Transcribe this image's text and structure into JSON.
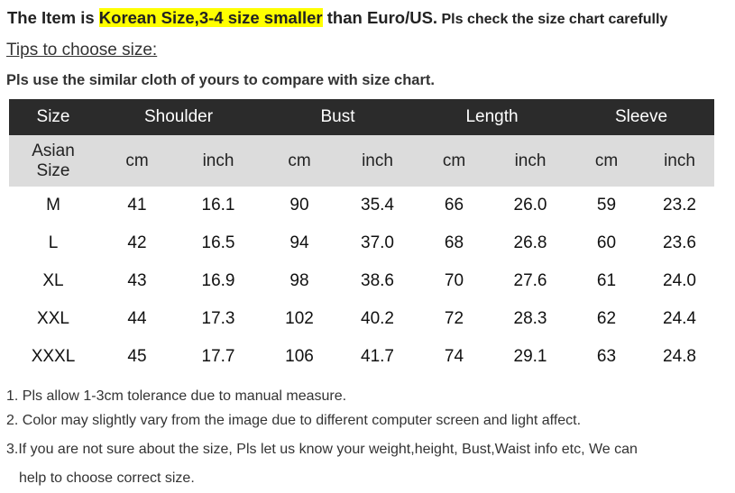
{
  "heading": {
    "prefix": "The Item is ",
    "highlight": "Korean Size,3-4 size smaller",
    "middle": " than Euro/US.",
    "suffix": " Pls check the size chart carefully",
    "highlight_color": "#ffff00"
  },
  "tips_label": "Tips to choose size:",
  "instruction": "Pls use the similar cloth of yours to compare with size chart.",
  "table": {
    "header": [
      "Size",
      "Shoulder",
      "Bust",
      "Length",
      "Sleeve"
    ],
    "subheader": [
      "Asian Size",
      "cm",
      "inch",
      "cm",
      "inch",
      "cm",
      "inch",
      "cm",
      "inch"
    ],
    "rows": [
      [
        "M",
        "41",
        "16.1",
        "90",
        "35.4",
        "66",
        "26.0",
        "59",
        "23.2"
      ],
      [
        "L",
        "42",
        "16.5",
        "94",
        "37.0",
        "68",
        "26.8",
        "60",
        "23.6"
      ],
      [
        "XL",
        "43",
        "16.9",
        "98",
        "38.6",
        "70",
        "27.6",
        "61",
        "24.0"
      ],
      [
        "XXL",
        "44",
        "17.3",
        "102",
        "40.2",
        "72",
        "28.3",
        "62",
        "24.4"
      ],
      [
        "XXXL",
        "45",
        "17.7",
        "106",
        "41.7",
        "74",
        "29.1",
        "63",
        "24.8"
      ]
    ]
  },
  "notes": [
    "1. Pls allow 1-3cm tolerance due to manual measure.",
    "2. Color may slightly vary from the image due to different computer screen and light affect.",
    "3.If you are not sure about the size, Pls let us know your weight,height, Bust,Waist info etc, We can",
    "help to choose correct size."
  ]
}
